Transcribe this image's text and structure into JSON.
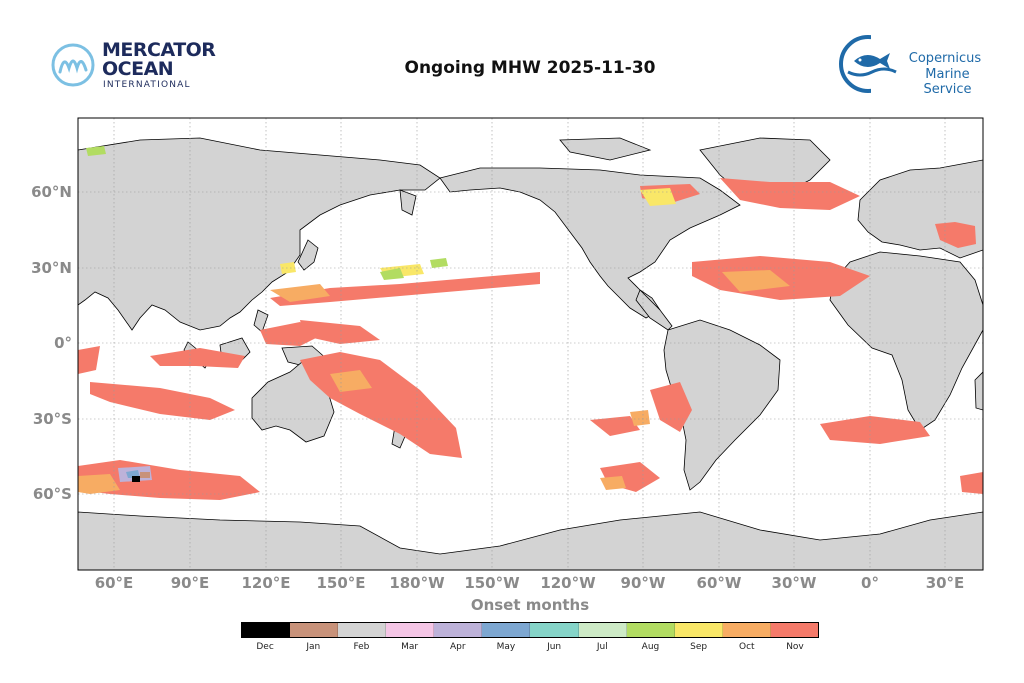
{
  "title": "Ongoing MHW 2025-11-30",
  "logo_left": {
    "line1": "MERCATOR",
    "line2": "OCEAN",
    "line3": "INTERNATIONAL"
  },
  "logo_right": {
    "line1": "Copernicus",
    "line2": "Marine Service"
  },
  "map": {
    "lon_labels": [
      "60°E",
      "90°E",
      "120°E",
      "150°E",
      "180°W",
      "150°W",
      "120°W",
      "90°W",
      "60°W",
      "30°W",
      "0°",
      "30°E"
    ],
    "lat_labels": [
      "60°N",
      "30°N",
      "0°",
      "30°S",
      "60°S"
    ],
    "xlabel": "Onset months"
  },
  "legend": {
    "items": [
      {
        "label": "Dec",
        "color": "#000000"
      },
      {
        "label": "Jan",
        "color": "#c8927a"
      },
      {
        "label": "Feb",
        "color": "#d3d3d3"
      },
      {
        "label": "Mar",
        "color": "#f5c6e6"
      },
      {
        "label": "Apr",
        "color": "#bdb2d9"
      },
      {
        "label": "May",
        "color": "#7da7d1"
      },
      {
        "label": "Jun",
        "color": "#85d4c8"
      },
      {
        "label": "Jul",
        "color": "#cdeac6"
      },
      {
        "label": "Aug",
        "color": "#b2dc62"
      },
      {
        "label": "Sep",
        "color": "#f9e768"
      },
      {
        "label": "Oct",
        "color": "#f7ac63"
      },
      {
        "label": "Nov",
        "color": "#f57a6a"
      }
    ]
  },
  "colors": {
    "land": "#d3d3d3",
    "ocean": "#ffffff",
    "nov": "#f57a6a",
    "oct": "#f7ac63",
    "sep": "#f9e768",
    "aug": "#b2dc62"
  }
}
